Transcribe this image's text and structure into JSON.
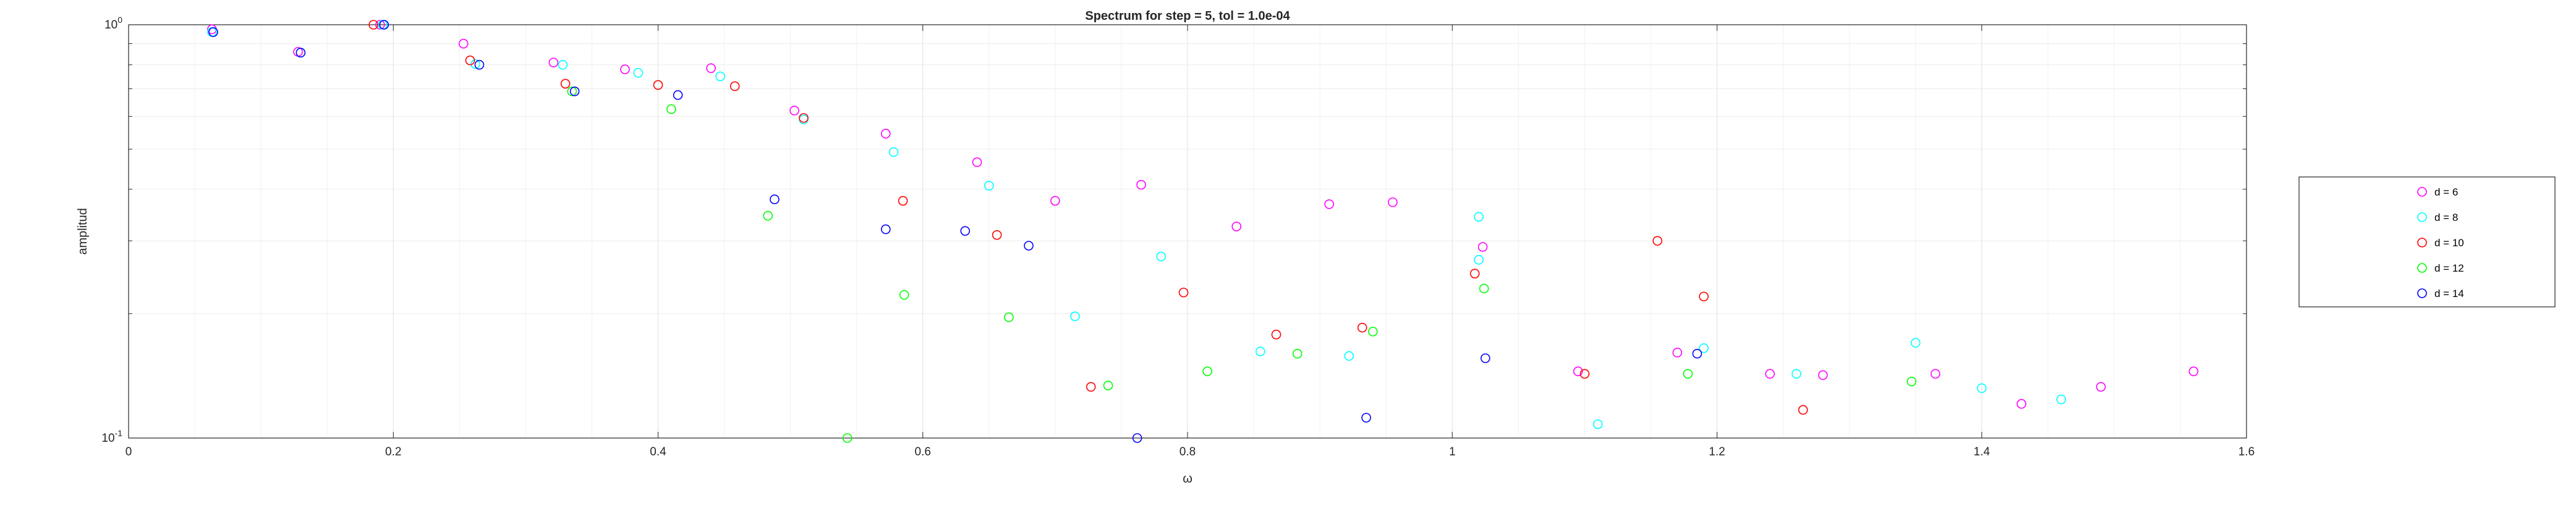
{
  "chart_data": {
    "type": "scatter",
    "title": "Spectrum for step = 5, tol = 1.0e-04",
    "xlabel": "ω",
    "ylabel": "amplitud",
    "xlim": [
      0,
      1.6
    ],
    "ylim": [
      0.1,
      1
    ],
    "yscale": "log",
    "x_ticks": [
      0,
      0.2,
      0.4,
      0.6,
      0.8,
      1,
      1.2,
      1.4,
      1.6
    ],
    "x_tick_labels": [
      "0",
      "0.2",
      "0.4",
      "0.6",
      "0.8",
      "1",
      "1.2",
      "1.4",
      "1.6"
    ],
    "y_ticks": [
      0.1,
      1
    ],
    "y_tick_labels": [
      {
        "base": "10",
        "exp": "-1"
      },
      {
        "base": "10",
        "exp": "0"
      }
    ],
    "grid": true,
    "marker": "open-circle",
    "legend_position": "right",
    "series": [
      {
        "name": "d = 6",
        "color": "#ff00ff",
        "points": [
          [
            0.063,
            0.975
          ],
          [
            0.128,
            0.86
          ],
          [
            0.19,
            1.0
          ],
          [
            0.253,
            0.9
          ],
          [
            0.321,
            0.81
          ],
          [
            0.375,
            0.78
          ],
          [
            0.44,
            0.785
          ],
          [
            0.503,
            0.62
          ],
          [
            0.572,
            0.545
          ],
          [
            0.641,
            0.465
          ],
          [
            0.7,
            0.375
          ],
          [
            0.765,
            0.41
          ],
          [
            0.837,
            0.325
          ],
          [
            0.907,
            0.368
          ],
          [
            0.955,
            0.372
          ],
          [
            1.023,
            0.29
          ],
          [
            1.095,
            0.145
          ],
          [
            1.17,
            0.161
          ],
          [
            1.24,
            0.143
          ],
          [
            1.28,
            0.142
          ],
          [
            1.365,
            0.143
          ],
          [
            1.43,
            0.121
          ],
          [
            1.49,
            0.133
          ],
          [
            1.56,
            0.145
          ]
        ]
      },
      {
        "name": "d = 8",
        "color": "#00ffff",
        "points": [
          [
            0.063,
            0.96
          ],
          [
            0.13,
            0.856
          ],
          [
            0.192,
            1.0
          ],
          [
            0.262,
            0.803
          ],
          [
            0.328,
            0.8
          ],
          [
            0.385,
            0.765
          ],
          [
            0.447,
            0.75
          ],
          [
            0.51,
            0.59
          ],
          [
            0.578,
            0.492
          ],
          [
            0.65,
            0.408
          ],
          [
            0.715,
            0.197
          ],
          [
            0.78,
            0.275
          ],
          [
            0.855,
            0.162
          ],
          [
            0.922,
            0.158
          ],
          [
            1.02,
            0.343
          ],
          [
            1.02,
            0.27
          ],
          [
            1.11,
            0.108
          ],
          [
            1.19,
            0.165
          ],
          [
            1.26,
            0.143
          ],
          [
            1.35,
            0.17
          ],
          [
            1.4,
            0.132
          ],
          [
            1.46,
            0.124
          ]
        ]
      },
      {
        "name": "d = 10",
        "color": "#ff0000",
        "points": [
          [
            0.185,
            1.0
          ],
          [
            0.258,
            0.82
          ],
          [
            0.33,
            0.72
          ],
          [
            0.4,
            0.715
          ],
          [
            0.458,
            0.71
          ],
          [
            0.51,
            0.595
          ],
          [
            0.585,
            0.375
          ],
          [
            0.656,
            0.31
          ],
          [
            0.727,
            0.133
          ],
          [
            0.797,
            0.225
          ],
          [
            0.867,
            0.178
          ],
          [
            0.932,
            0.185
          ],
          [
            1.017,
            0.25
          ],
          [
            1.1,
            0.143
          ],
          [
            1.155,
            0.3
          ],
          [
            1.19,
            0.22
          ],
          [
            1.265,
            0.117
          ]
        ]
      },
      {
        "name": "d = 12",
        "color": "#00ff00",
        "points": [
          [
            0.335,
            0.69
          ],
          [
            0.41,
            0.625
          ],
          [
            0.483,
            0.345
          ],
          [
            0.543,
            0.1
          ],
          [
            0.586,
            0.222
          ],
          [
            0.665,
            0.196
          ],
          [
            0.74,
            0.134
          ],
          [
            0.815,
            0.145
          ],
          [
            0.883,
            0.16
          ],
          [
            0.94,
            0.181
          ],
          [
            1.024,
            0.23
          ],
          [
            1.178,
            0.143
          ],
          [
            1.347,
            0.137
          ]
        ]
      },
      {
        "name": "d = 14",
        "color": "#0000ff",
        "points": [
          [
            0.064,
            0.96
          ],
          [
            0.13,
            0.856
          ],
          [
            0.193,
            1.0
          ],
          [
            0.265,
            0.8
          ],
          [
            0.337,
            0.69
          ],
          [
            0.415,
            0.676
          ],
          [
            0.488,
            0.378
          ],
          [
            0.572,
            0.32
          ],
          [
            0.632,
            0.317
          ],
          [
            0.68,
            0.292
          ],
          [
            0.762,
            0.1
          ],
          [
            0.935,
            0.112
          ],
          [
            1.025,
            0.156
          ],
          [
            1.185,
            0.16
          ]
        ]
      }
    ]
  }
}
